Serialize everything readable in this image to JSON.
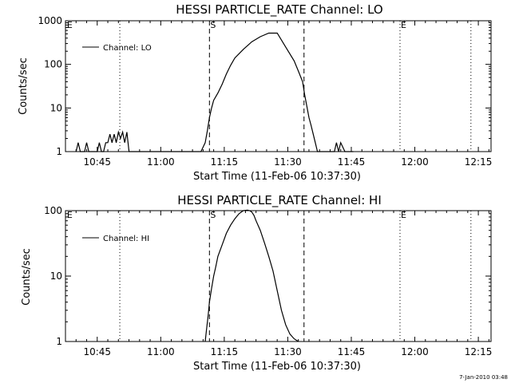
{
  "footer": "7-Jan-2010 03:48",
  "chart_data": [
    {
      "type": "line",
      "title": "HESSI PARTICLE_RATE Channel: LO",
      "xlabel": "Start Time (11-Feb-06 10:37:30)",
      "ylabel": "Counts/sec",
      "yscale": "log",
      "ylim": [
        1,
        1000
      ],
      "xlim": [
        "10:37:30",
        "12:18:00"
      ],
      "x_ticks": [
        "10:45",
        "11:00",
        "11:15",
        "11:30",
        "11:45",
        "12:00",
        "12:15"
      ],
      "y_ticks": [
        "1",
        "10",
        "100",
        "1000"
      ],
      "legend": "top-left",
      "markers": {
        "dotted": [
          "10:50:20",
          "11:56:30",
          "12:13:15"
        ],
        "dashed": [
          "11:11:30",
          "11:33:50"
        ],
        "labels": [
          {
            "text": "E",
            "x": "10:37:40"
          },
          {
            "text": "S",
            "x": "11:11:30"
          },
          {
            "text": "E",
            "x": "11:56:30"
          }
        ]
      },
      "series": [
        {
          "name": "Channel: LO",
          "time_min": [
            2.5,
            3.0,
            3.5,
            4.0,
            4.5,
            5.0,
            5.5,
            6.0,
            6.5,
            7.0,
            7.5,
            8.0,
            8.5,
            9.0,
            9.5,
            10.0,
            10.5,
            11.0,
            11.5,
            12.0,
            12.5,
            13.0,
            13.5,
            14.0,
            14.5,
            15.0,
            16.0,
            32.0,
            33.0,
            33.5,
            34.0,
            34.5,
            35.0,
            36.0,
            37.0,
            38.0,
            39.0,
            40.0,
            42.0,
            44.0,
            46.0,
            48.0,
            50.0,
            52.0,
            54.0,
            55.0,
            56.0,
            56.5,
            57.0,
            57.5,
            58.0,
            58.5,
            59.0,
            59.5,
            60.0,
            60.5,
            61.0,
            61.5,
            62.0,
            62.5,
            63.0,
            63.5,
            64.0,
            64.5,
            65.0,
            66.0,
            68.0
          ],
          "counts_per_sec": [
            1,
            1.6,
            1,
            1,
            1,
            1.6,
            1,
            1,
            1,
            1,
            1,
            1.6,
            1,
            1,
            1.6,
            1.6,
            2.5,
            1.6,
            2.5,
            1.6,
            2.8,
            2,
            2.8,
            1.6,
            2.8,
            1,
            1,
            1,
            1.6,
            3,
            6,
            10,
            15,
            22,
            35,
            60,
            95,
            140,
            220,
            330,
            430,
            520,
            520,
            250,
            120,
            70,
            40,
            20,
            11,
            6,
            4,
            2.5,
            1.6,
            1,
            1,
            1,
            1,
            1,
            1,
            1,
            1,
            1,
            1.6,
            1,
            1.6,
            1,
            1
          ]
        }
      ]
    },
    {
      "type": "line",
      "title": "HESSI PARTICLE_RATE Channel: HI",
      "xlabel": "Start Time (11-Feb-06 10:37:30)",
      "ylabel": "Counts/sec",
      "yscale": "log",
      "ylim": [
        1,
        100
      ],
      "xlim": [
        "10:37:30",
        "12:18:00"
      ],
      "x_ticks": [
        "10:45",
        "11:00",
        "11:15",
        "11:30",
        "11:45",
        "12:00",
        "12:15"
      ],
      "y_ticks": [
        "1",
        "10",
        "100"
      ],
      "legend": "top-left",
      "markers": {
        "dotted": [
          "10:50:20",
          "11:56:30",
          "12:13:15"
        ],
        "dashed": [
          "11:11:30",
          "11:33:50"
        ],
        "labels": [
          {
            "text": "E",
            "x": "10:37:40"
          },
          {
            "text": "S",
            "x": "11:11:30"
          },
          {
            "text": "E",
            "x": "11:56:30"
          }
        ]
      },
      "series": [
        {
          "name": "Channel: HI",
          "time_min": [
            33.0,
            33.3,
            33.7,
            34.0,
            34.5,
            35.0,
            35.5,
            36.0,
            37.0,
            38.0,
            39.0,
            40.0,
            41.0,
            42.0,
            43.0,
            43.5,
            44.0,
            44.5,
            45.0,
            46.0,
            47.0,
            48.0,
            49.0,
            50.0,
            51.0,
            52.0,
            53.0,
            54.0,
            54.5,
            55.0
          ],
          "counts_per_sec": [
            1,
            1.5,
            2.5,
            4,
            6.5,
            10,
            14,
            20,
            30,
            45,
            60,
            75,
            90,
            100,
            102,
            100,
            95,
            85,
            70,
            50,
            32,
            20,
            12,
            6,
            3,
            1.8,
            1.3,
            1.1,
            1.05,
            1
          ]
        }
      ]
    }
  ]
}
